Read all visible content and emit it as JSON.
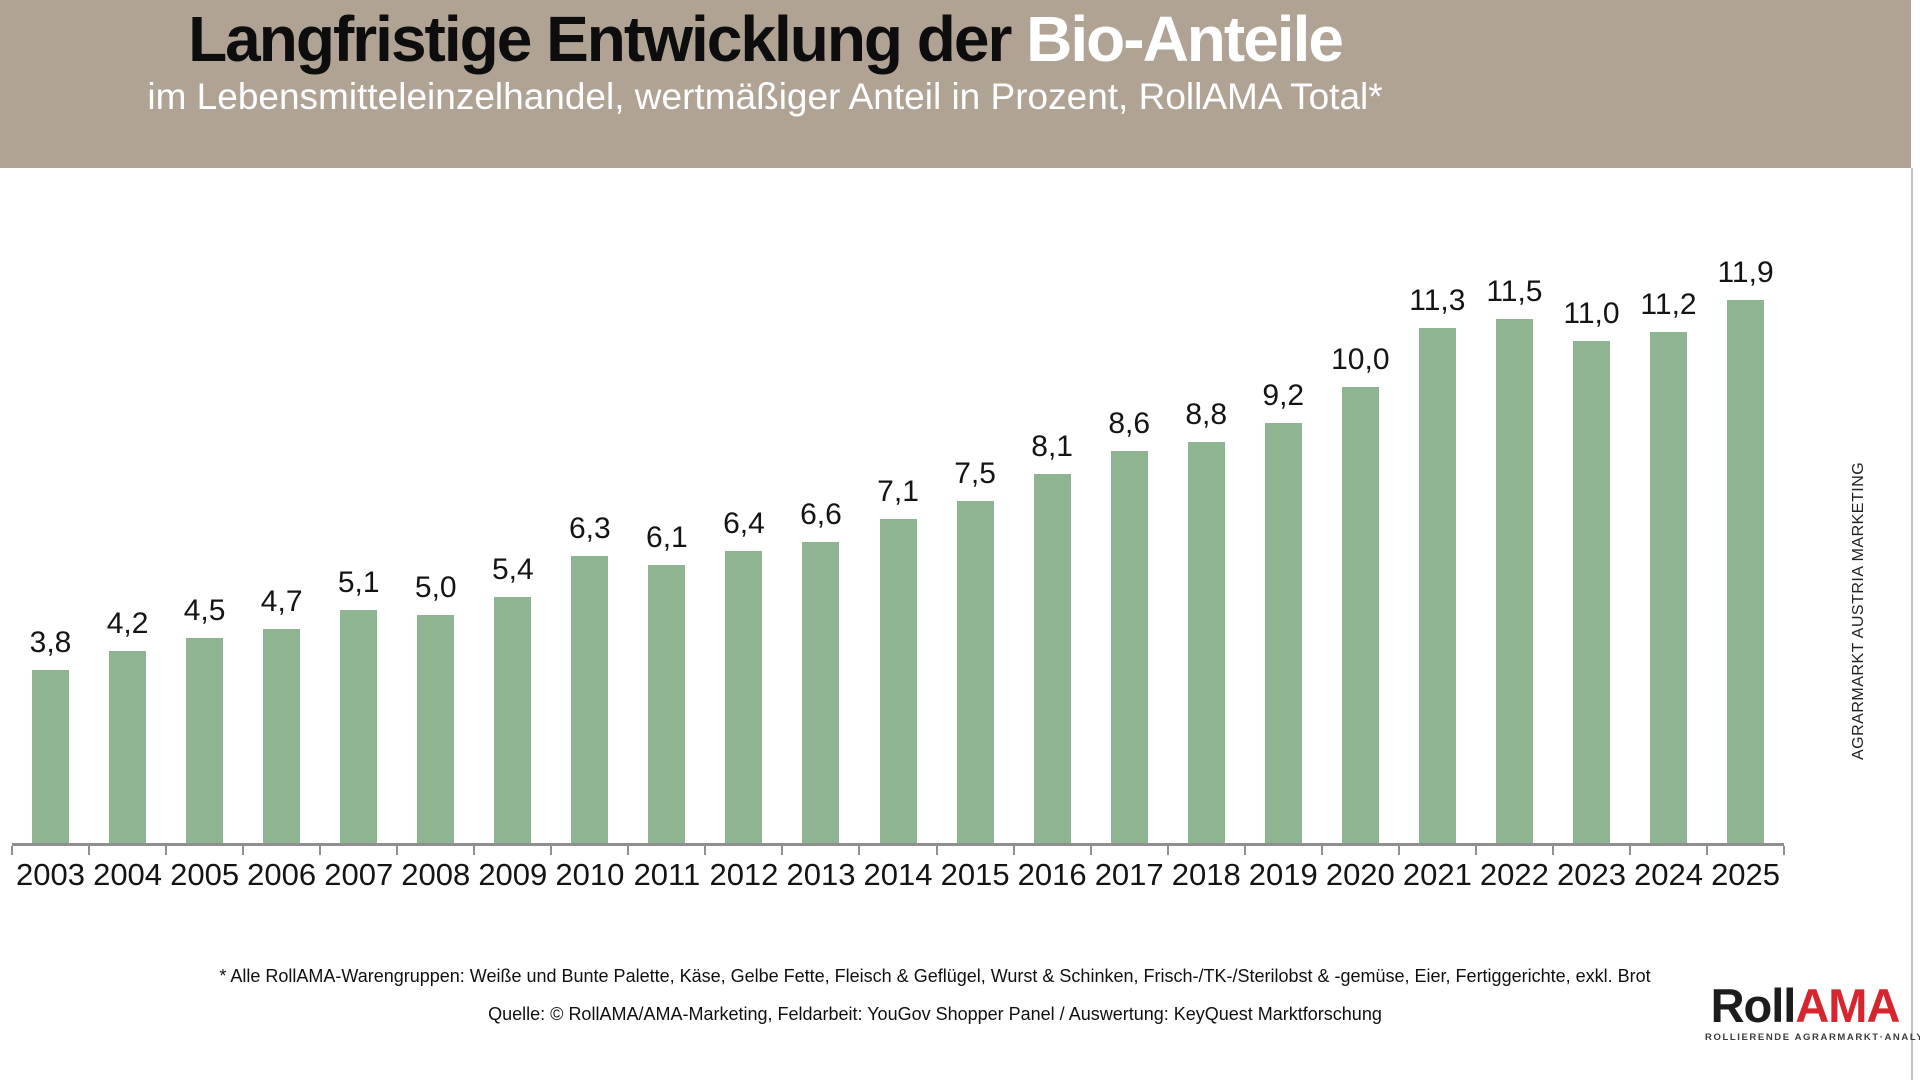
{
  "header": {
    "title_black": "Langfristige Entwicklung der ",
    "title_white": "Bio-Anteile",
    "subtitle": "im Lebensmitteleinzelhandel, wertmäßiger Anteil in Prozent, RollAMA Total*",
    "bg_color": "#b1a394"
  },
  "chart_data": {
    "type": "bar",
    "title": "Langfristige Entwicklung der Bio-Anteile",
    "subtitle": "im Lebensmitteleinzelhandel, wertmäßiger Anteil in Prozent, RollAMA Total*",
    "categories": [
      "2003",
      "2004",
      "2005",
      "2006",
      "2007",
      "2008",
      "2009",
      "2010",
      "2011",
      "2012",
      "2013",
      "2014",
      "2015",
      "2016",
      "2017",
      "2018",
      "2019",
      "2020",
      "2021",
      "2022",
      "2023",
      "2024",
      "2025"
    ],
    "values": [
      3.8,
      4.2,
      4.5,
      4.7,
      5.1,
      5.0,
      5.4,
      6.3,
      6.1,
      6.4,
      6.6,
      7.1,
      7.5,
      8.1,
      8.6,
      8.8,
      9.2,
      10.0,
      11.3,
      11.5,
      11.0,
      11.2,
      11.9
    ],
    "value_labels": [
      "3,8",
      "4,2",
      "4,5",
      "4,7",
      "5,1",
      "5,0",
      "5,4",
      "6,3",
      "6,1",
      "6,4",
      "6,6",
      "7,1",
      "7,5",
      "8,1",
      "8,6",
      "8,8",
      "9,2",
      "10,0",
      "11,3",
      "11,5",
      "11,0",
      "11,2",
      "11,9"
    ],
    "xlabel": "",
    "ylabel": "",
    "ylim": [
      0,
      12.5
    ],
    "grid": false,
    "legend": false,
    "bar_color": "#8fb492",
    "axis_color": "#8f8f8f"
  },
  "side_label": "AGRARMARKT AUSTRIA MARKETING",
  "footer": {
    "footnote": "* Alle RollAMA-Warengruppen: Weiße und Bunte Palette, Käse, Gelbe Fette, Fleisch & Geflügel, Wurst & Schinken, Frisch-/TK-/Sterilobst & -gemüse,  Eier,  Fertiggerichte, exkl. Brot",
    "source": "Quelle: © RollAMA/AMA-Marketing, Feldarbeit: YouGov Shopper Panel / Auswertung: KeyQuest Marktforschung"
  },
  "logo": {
    "part1": "Roll",
    "part2": "AMA",
    "subtext": "ROLLIERENDE AGRARMARKT·ANALYSE",
    "accent_color": "#d6252e"
  }
}
